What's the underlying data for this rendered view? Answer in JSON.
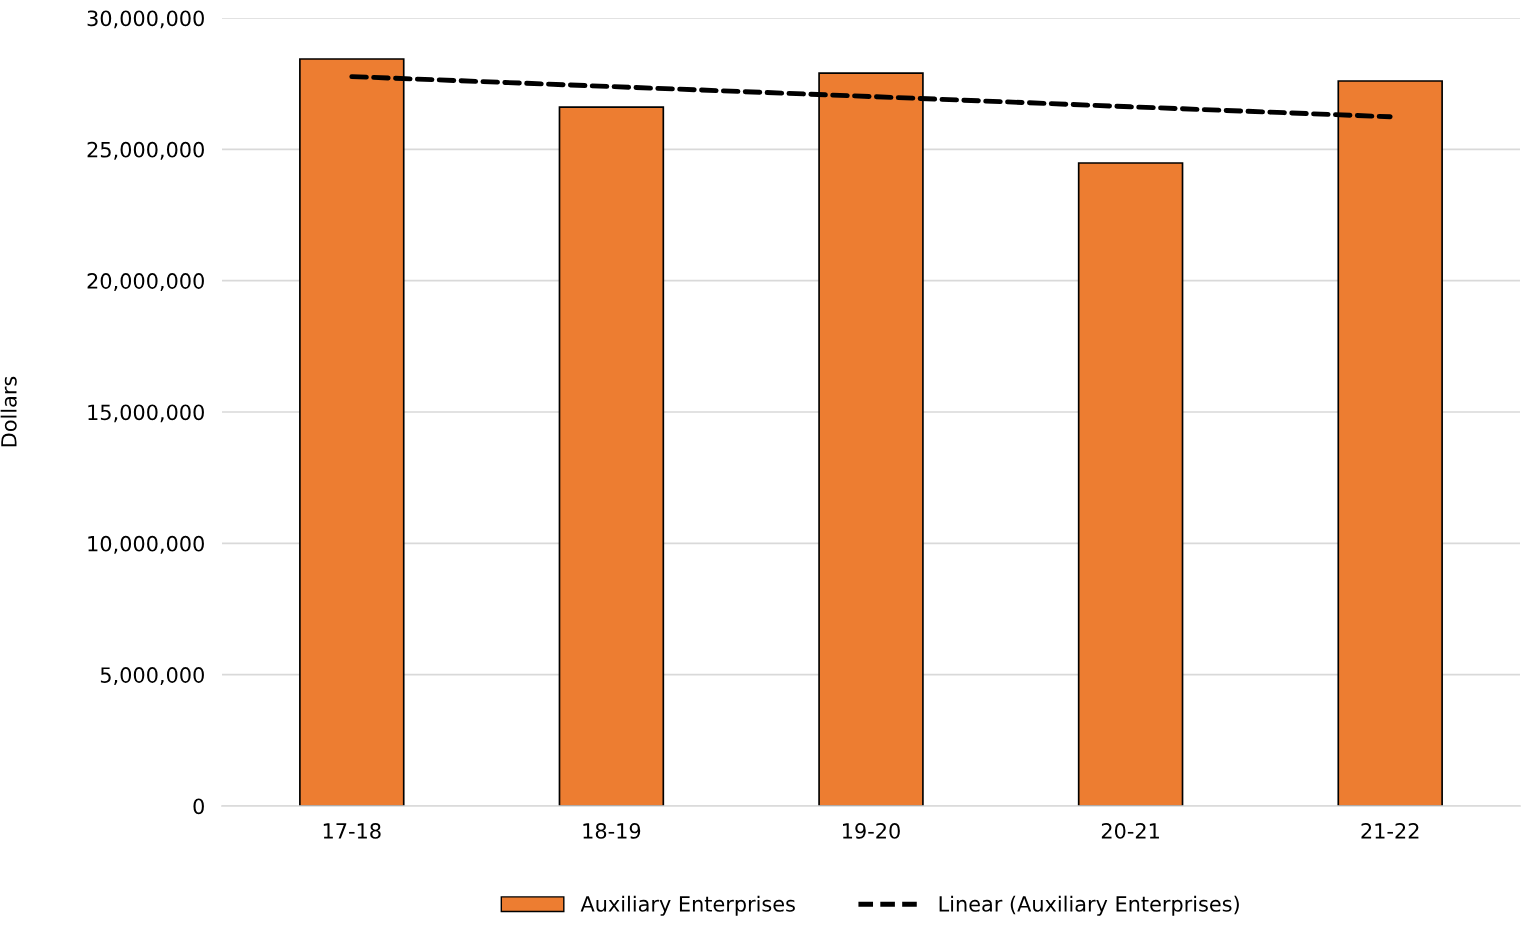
{
  "chart_data": {
    "type": "bar",
    "ylabel": "Dollars",
    "categories": [
      "17-18",
      "18-19",
      "19-20",
      "20-21",
      "21-22"
    ],
    "series": [
      {
        "name": "Auxiliary Enterprises",
        "color": "#ed7d31",
        "values": [
          28440000,
          26610000,
          27900000,
          24480000,
          27600000
        ]
      },
      {
        "name": "Linear (Auxiliary Enterprises)",
        "type": "line",
        "color": "#000000",
        "line_style": "dashed",
        "marker": "none",
        "values": [
          27770000,
          27390000,
          27010000,
          26620000,
          26240000
        ]
      }
    ],
    "ylim": [
      0,
      30000000
    ],
    "yticks": [
      0,
      {
        "value": 5000000,
        "label": "5,000,000"
      },
      {
        "value": 10000000,
        "label": "10,000,000"
      },
      {
        "value": 15000000,
        "label": "15,000,000"
      },
      {
        "value": 20000000,
        "label": "20,000,000"
      },
      {
        "value": 25000000,
        "label": "25,000,000"
      },
      {
        "value": 30000000,
        "label": "30,000,000"
      }
    ],
    "grid": "y",
    "legend": "bottom"
  }
}
